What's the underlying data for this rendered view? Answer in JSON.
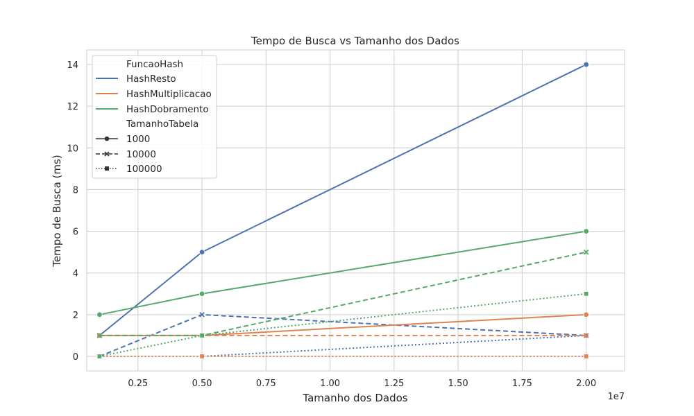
{
  "chart_data": {
    "type": "line",
    "title": "Tempo de Busca vs Tamanho dos Dados",
    "xlabel": "Tamanho dos Dados",
    "ylabel": "Tempo de Busca (ms)",
    "x_offset_label": "1e7",
    "xlim": [
      500000,
      21500000
    ],
    "ylim": [
      -0.7,
      14.7
    ],
    "x_ticks": [
      2500000,
      5000000,
      7500000,
      10000000,
      12500000,
      15000000,
      17500000,
      20000000
    ],
    "x_tick_labels": [
      "0.25",
      "0.50",
      "0.75",
      "1.00",
      "1.25",
      "1.50",
      "1.75",
      "2.00"
    ],
    "y_ticks": [
      0,
      2,
      4,
      6,
      8,
      10,
      12,
      14
    ],
    "y_tick_labels": [
      "0",
      "2",
      "4",
      "6",
      "8",
      "10",
      "12",
      "14"
    ],
    "grid": true,
    "legend_position": "top-left",
    "x": [
      1000000,
      5000000,
      20000000
    ],
    "colors": {
      "HashResto": "#4c72b0",
      "HashMultiplicacao": "#dd8452",
      "HashDobramento": "#55a868"
    },
    "series": [
      {
        "function": "HashResto",
        "table_size": "1000",
        "style": "solid",
        "marker": "circle",
        "values": [
          1,
          5,
          14
        ]
      },
      {
        "function": "HashResto",
        "table_size": "10000",
        "style": "dashed",
        "marker": "x",
        "values": [
          0,
          2,
          1
        ]
      },
      {
        "function": "HashResto",
        "table_size": "100000",
        "style": "dotted",
        "marker": "square",
        "values": [
          0,
          0,
          1
        ]
      },
      {
        "function": "HashMultiplicacao",
        "table_size": "1000",
        "style": "solid",
        "marker": "circle",
        "values": [
          1,
          1,
          2
        ]
      },
      {
        "function": "HashMultiplicacao",
        "table_size": "10000",
        "style": "dashed",
        "marker": "x",
        "values": [
          1,
          1,
          1
        ]
      },
      {
        "function": "HashMultiplicacao",
        "table_size": "100000",
        "style": "dotted",
        "marker": "square",
        "values": [
          0,
          0,
          0
        ]
      },
      {
        "function": "HashDobramento",
        "table_size": "1000",
        "style": "solid",
        "marker": "circle",
        "values": [
          2,
          3,
          6
        ]
      },
      {
        "function": "HashDobramento",
        "table_size": "10000",
        "style": "dashed",
        "marker": "x",
        "values": [
          1,
          1,
          5
        ]
      },
      {
        "function": "HashDobramento",
        "table_size": "100000",
        "style": "dotted",
        "marker": "square",
        "values": [
          0,
          1,
          3
        ]
      }
    ],
    "legend": {
      "hue_title": "FuncaoHash",
      "hue_entries": [
        "HashResto",
        "HashMultiplicacao",
        "HashDobramento"
      ],
      "style_title": "TamanhoTabela",
      "style_entries": [
        {
          "label": "1000",
          "style": "solid",
          "marker": "circle"
        },
        {
          "label": "10000",
          "style": "dashed",
          "marker": "x"
        },
        {
          "label": "100000",
          "style": "dotted",
          "marker": "square"
        }
      ]
    }
  }
}
